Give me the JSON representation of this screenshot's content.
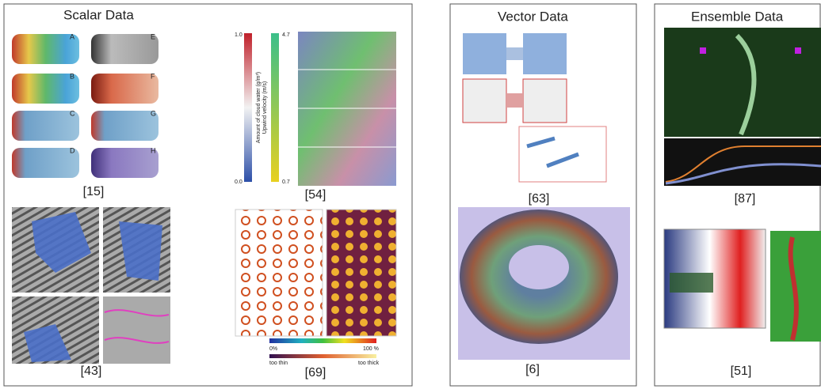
{
  "scalar": {
    "title": "Scalar Data",
    "fig15": {
      "label": "[15]",
      "panels": [
        "A",
        "B",
        "C",
        "D",
        "E",
        "F",
        "G",
        "H"
      ]
    },
    "fig54": {
      "label": "[54]",
      "cloud_axis": {
        "title": "Amount of cloud water (g/m³)",
        "max": "1.0",
        "min": "0.0"
      },
      "velocity_axis": {
        "title": "Upwind velocity (m/s)",
        "max": "4.7",
        "min": "0.7"
      }
    },
    "fig43": {
      "label": "[43]"
    },
    "fig69": {
      "label": "[69]",
      "scale": {
        "min": "0%",
        "max": "100 %",
        "low": "too thin",
        "high": "too thick"
      }
    }
  },
  "vector": {
    "title": "Vector Data",
    "fig63": {
      "label": "[63]"
    },
    "fig6": {
      "label": "[6]"
    }
  },
  "ensemble": {
    "title": "Ensemble Data",
    "fig87": {
      "label": "[87]"
    },
    "fig51": {
      "label": "[51]"
    }
  }
}
